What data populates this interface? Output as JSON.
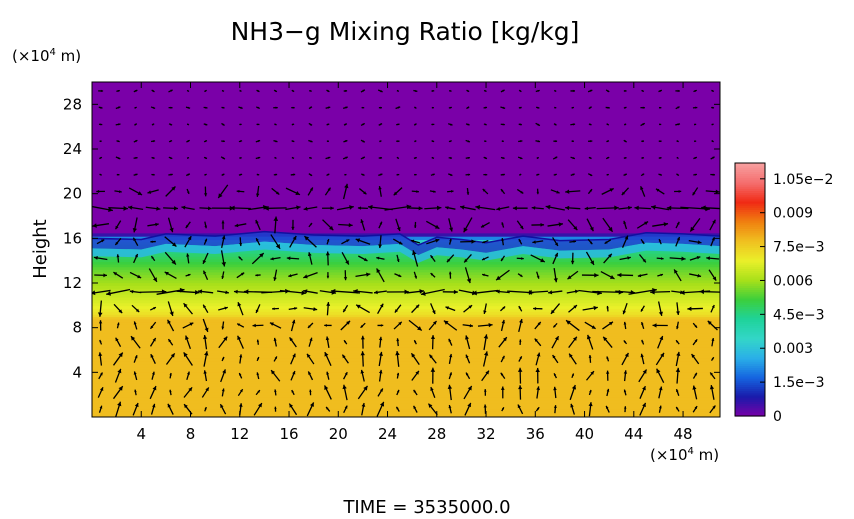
{
  "chart_data": {
    "type": "heatmap",
    "title": "NH3−g Mixing Ratio [kg/kg]",
    "ylabel": "Height",
    "y_unit_label": "(×10",
    "x_unit_label": "(×10",
    "unit_exponent": "4",
    "unit_suffix": " m)",
    "x_ticks": [
      "4",
      "8",
      "12",
      "16",
      "20",
      "24",
      "28",
      "32",
      "36",
      "40",
      "44",
      "48"
    ],
    "y_ticks": [
      "4",
      "8",
      "12",
      "16",
      "20",
      "24",
      "28"
    ],
    "xlim": [
      0,
      51
    ],
    "ylim": [
      0,
      30
    ],
    "colorbar": {
      "ticks": [
        "0",
        "1.5e−3",
        "0.003",
        "4.5e−3",
        "0.006",
        "7.5e−3",
        "0.009",
        "1.05e−2"
      ],
      "tick_values": [
        0,
        0.0015,
        0.003,
        0.0045,
        0.006,
        0.0075,
        0.009,
        0.0105
      ],
      "range": [
        0,
        0.0112
      ],
      "colors": [
        "#7a00a8",
        "#1a1aaa",
        "#1565e0",
        "#2ab0e8",
        "#33d6c8",
        "#1fd39a",
        "#3ccf3c",
        "#a8e01a",
        "#eaf02a",
        "#f0c020",
        "#f08010",
        "#f02a14",
        "#f56e6e",
        "#f7a0a0"
      ]
    },
    "field_profile": [
      {
        "y": 0,
        "value": 0.0078
      },
      {
        "y": 8.8,
        "value": 0.0078
      },
      {
        "y": 9.2,
        "value": 0.0072
      },
      {
        "y": 10.5,
        "value": 0.0066
      },
      {
        "y": 11.8,
        "value": 0.0061
      },
      {
        "y": 13.0,
        "value": 0.0056
      },
      {
        "y": 14.4,
        "value": 0.0048
      },
      {
        "y": 15.5,
        "value": 0.0042
      },
      {
        "y": 15.9,
        "value": 0.003
      },
      {
        "y": 16.2,
        "value": 0.0012
      },
      {
        "y": 16.5,
        "value": 0
      },
      {
        "y": 30,
        "value": 0
      }
    ],
    "interface_height": [
      {
        "x": 0,
        "y": 16.0
      },
      {
        "x": 4,
        "y": 15.9
      },
      {
        "x": 6,
        "y": 16.4
      },
      {
        "x": 10,
        "y": 16.2
      },
      {
        "x": 14,
        "y": 16.6
      },
      {
        "x": 18,
        "y": 16.3
      },
      {
        "x": 22,
        "y": 16.2
      },
      {
        "x": 25,
        "y": 16.4
      },
      {
        "x": 26.5,
        "y": 15.4
      },
      {
        "x": 28,
        "y": 16.1
      },
      {
        "x": 30,
        "y": 15.9
      },
      {
        "x": 32,
        "y": 15.6
      },
      {
        "x": 35,
        "y": 16.2
      },
      {
        "x": 38,
        "y": 15.8
      },
      {
        "x": 42,
        "y": 15.9
      },
      {
        "x": 45,
        "y": 16.5
      },
      {
        "x": 48,
        "y": 16.4
      },
      {
        "x": 51,
        "y": 16.2
      }
    ],
    "vectors": "wind vectors overlaid (arrows)"
  },
  "time_label": "TIME",
  "time_equals": "=",
  "time_value": "3535000.0"
}
